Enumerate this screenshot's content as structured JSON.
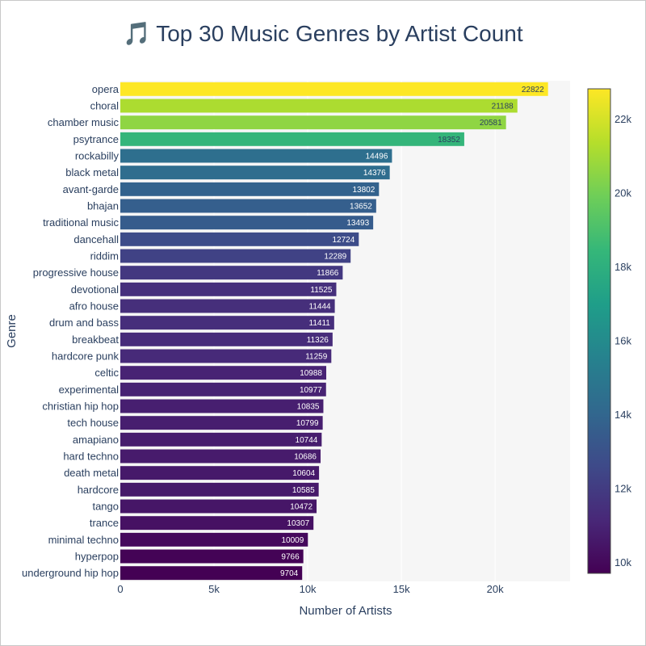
{
  "chart_data": {
    "type": "bar",
    "orientation": "horizontal",
    "title_icon": "🎵",
    "title_text": "Top 30 Music Genres by Artist Count",
    "xlabel": "Number of Artists",
    "ylabel": "Genre",
    "xlim": [
      0,
      24000
    ],
    "xticks": [
      0,
      5000,
      10000,
      15000,
      20000
    ],
    "xtick_labels": [
      "0",
      "5k",
      "10k",
      "15k",
      "20k"
    ],
    "grid": true,
    "colorscale": "viridis",
    "colorbar": {
      "range": [
        9704,
        22822
      ],
      "ticks": [
        10000,
        12000,
        14000,
        16000,
        18000,
        20000,
        22000
      ],
      "tick_labels": [
        "10k",
        "12k",
        "14k",
        "16k",
        "18k",
        "20k",
        "22k"
      ]
    },
    "categories": [
      "opera",
      "choral",
      "chamber music",
      "psytrance",
      "rockabilly",
      "black metal",
      "avant-garde",
      "bhajan",
      "traditional music",
      "dancehall",
      "riddim",
      "progressive house",
      "devotional",
      "afro house",
      "drum and bass",
      "breakbeat",
      "hardcore punk",
      "celtic",
      "experimental",
      "christian hip hop",
      "tech house",
      "amapiano",
      "hard techno",
      "death metal",
      "hardcore",
      "tango",
      "trance",
      "minimal techno",
      "hyperpop",
      "underground hip hop"
    ],
    "values": [
      22822,
      21188,
      20581,
      18352,
      14496,
      14376,
      13802,
      13652,
      13493,
      12724,
      12289,
      11866,
      11525,
      11444,
      11411,
      11326,
      11259,
      10988,
      10977,
      10835,
      10799,
      10744,
      10686,
      10604,
      10585,
      10472,
      10307,
      10009,
      9766,
      9704
    ]
  }
}
